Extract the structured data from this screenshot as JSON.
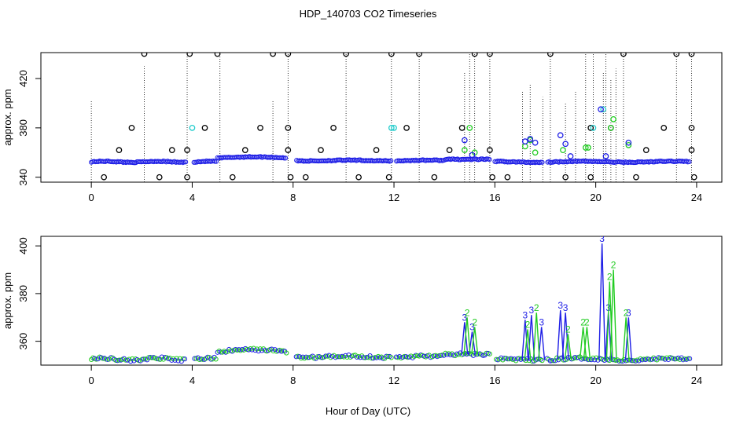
{
  "title": "HDP_140703  CO2 Timeseries",
  "xlabel": "Hour of Day (UTC)",
  "colors": {
    "black": "#000000",
    "blue": "#1f1fe6",
    "green": "#22cc22",
    "cyan": "#22cccc"
  },
  "chart_data": [
    {
      "type": "scatter",
      "ylabel": "approx. ppm",
      "xlim": [
        -2,
        25
      ],
      "ylim": [
        336,
        441
      ],
      "xticks": [
        0,
        4,
        8,
        12,
        16,
        20,
        24
      ],
      "yticks": [
        340,
        380,
        420
      ],
      "series": [
        {
          "id": "raw-black-high",
          "x": [
            2.1,
            3.9,
            5.0,
            7.2,
            7.8,
            10.1,
            11.9,
            13.0,
            15.2,
            15.8,
            18.2,
            21.1,
            23.2,
            23.8
          ],
          "y": [
            440,
            440,
            440,
            440,
            440,
            440,
            440,
            440,
            440,
            440,
            440,
            440,
            440,
            440
          ]
        },
        {
          "id": "raw-black-mid",
          "x": [
            1.6,
            4.5,
            6.7,
            7.8,
            9.6,
            12.5,
            14.7,
            19.8,
            20.6,
            22.7,
            23.8
          ],
          "y": [
            380,
            380,
            380,
            380,
            380,
            380,
            380,
            380,
            380,
            380,
            380
          ]
        },
        {
          "id": "raw-black-low",
          "x": [
            1.1,
            3.2,
            3.8,
            6.1,
            7.8,
            9.1,
            11.3,
            14.2,
            15.8,
            22.0,
            23.8
          ],
          "y": [
            362,
            362,
            362,
            362,
            362,
            362,
            362,
            362,
            362,
            362,
            362
          ]
        },
        {
          "id": "raw-black-bottom",
          "x": [
            0.5,
            2.7,
            3.8,
            5.6,
            7.9,
            8.5,
            10.6,
            11.8,
            13.6,
            15.9,
            16.5,
            18.8,
            19.8,
            21.6,
            23.9
          ],
          "y": [
            340,
            340,
            340,
            340,
            340,
            340,
            340,
            340,
            340,
            340,
            340,
            340,
            340,
            340,
            340
          ]
        },
        {
          "id": "raw-cyan",
          "x": [
            4.0,
            11.9,
            12.0,
            19.9,
            20.3
          ],
          "y": [
            380,
            380,
            380,
            380,
            395
          ]
        },
        {
          "id": "raw-green-spikes",
          "x": [
            14.8,
            15.0,
            15.2,
            17.2,
            17.4,
            17.6,
            18.7,
            19.6,
            19.7,
            20.6,
            20.7,
            21.3
          ],
          "y": [
            362,
            380,
            360,
            365,
            370,
            360,
            362,
            364,
            364,
            380,
            387,
            366
          ]
        },
        {
          "id": "raw-blue-spikes",
          "x": [
            14.8,
            15.1,
            17.2,
            17.4,
            17.6,
            18.6,
            18.8,
            19.0,
            20.2,
            20.4,
            21.3
          ],
          "y": [
            370,
            358,
            369,
            371,
            368,
            374,
            367,
            357,
            395,
            357,
            368
          ]
        }
      ],
      "vertical_lines": [
        {
          "x": 0.0,
          "top": 402
        },
        {
          "x": 2.1,
          "top": 430
        },
        {
          "x": 3.8,
          "top": 440
        },
        {
          "x": 5.1,
          "top": 440
        },
        {
          "x": 7.2,
          "top": 402
        },
        {
          "x": 7.8,
          "top": 440
        },
        {
          "x": 10.1,
          "top": 440
        },
        {
          "x": 11.9,
          "top": 440
        },
        {
          "x": 13.0,
          "top": 440
        },
        {
          "x": 14.8,
          "top": 425
        },
        {
          "x": 15.0,
          "top": 445
        },
        {
          "x": 15.2,
          "top": 440
        },
        {
          "x": 15.8,
          "top": 440
        },
        {
          "x": 17.1,
          "top": 410
        },
        {
          "x": 17.4,
          "top": 415
        },
        {
          "x": 17.9,
          "top": 405
        },
        {
          "x": 18.2,
          "top": 440
        },
        {
          "x": 18.8,
          "top": 400
        },
        {
          "x": 19.2,
          "top": 410
        },
        {
          "x": 19.6,
          "top": 445
        },
        {
          "x": 19.9,
          "top": 440
        },
        {
          "x": 20.3,
          "top": 425
        },
        {
          "x": 20.4,
          "top": 445
        },
        {
          "x": 20.6,
          "top": 420
        },
        {
          "x": 20.8,
          "top": 428
        },
        {
          "x": 21.1,
          "top": 440
        },
        {
          "x": 23.2,
          "top": 440
        },
        {
          "x": 23.8,
          "top": 440
        }
      ]
    },
    {
      "type": "line",
      "ylabel": "approx. ppm",
      "xlim": [
        -2,
        25
      ],
      "ylim": [
        350,
        404
      ],
      "xticks": [
        0,
        4,
        8,
        12,
        16,
        20,
        24
      ],
      "yticks": [
        360,
        380,
        400
      ],
      "series": [
        {
          "id": "line-blue",
          "label": "3",
          "x": [
            14.8,
            15.1,
            17.2,
            17.45,
            17.85,
            18.6,
            18.8,
            20.25,
            20.5,
            21.3
          ],
          "y": [
            368,
            364,
            369,
            371,
            366,
            373,
            372,
            401,
            372,
            370
          ]
        },
        {
          "id": "line-green",
          "label": "2",
          "x": [
            14.9,
            15.2,
            17.3,
            17.65,
            18.9,
            19.5,
            19.65,
            20.55,
            20.7,
            21.2
          ],
          "y": [
            370,
            366,
            365,
            372,
            363,
            366,
            366,
            385,
            390,
            370
          ]
        }
      ]
    }
  ]
}
